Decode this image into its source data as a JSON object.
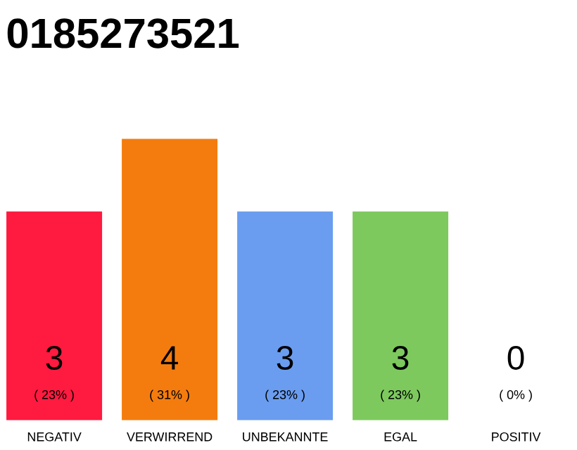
{
  "chart_data": {
    "type": "bar",
    "title": "0185273521",
    "categories": [
      "NEGATIV",
      "VERWIRREND",
      "UNBEKANNTE",
      "EGAL",
      "POSITIV"
    ],
    "values": [
      23,
      31,
      23,
      23,
      0
    ],
    "colors": [
      "#ff1a40",
      "#f47c0e",
      "#6a9df0",
      "#7dc95e",
      "#9e9e9e"
    ],
    "value_labels": [
      "( 23% )",
      "( 31% )",
      "( 23% )",
      "( 23% )",
      "( 0% )"
    ],
    "annotations": [
      "3",
      "4",
      "3",
      "3",
      "0"
    ],
    "tick_labels": "x"
  }
}
